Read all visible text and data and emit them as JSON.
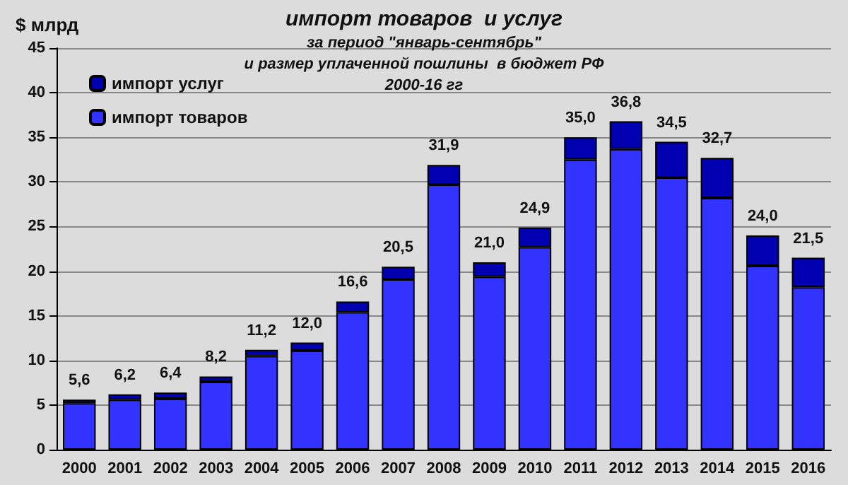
{
  "chart_data": {
    "type": "bar",
    "title": "импорт товаров  и услуг",
    "subtitle": "за период \"январь-сентябрь\"\nи размер уплаченной пошлины  в бюджет РФ\n2000-16 гг",
    "ylabel": "$ млрд",
    "categories": [
      "2000",
      "2001",
      "2002",
      "2003",
      "2004",
      "2005",
      "2006",
      "2007",
      "2008",
      "2009",
      "2010",
      "2011",
      "2012",
      "2013",
      "2014",
      "2015",
      "2016"
    ],
    "stacked": true,
    "series": [
      {
        "name": "импорт товаров",
        "color": "#3333ff",
        "values": [
          5.2,
          5.6,
          5.7,
          7.6,
          10.5,
          11.1,
          15.4,
          19.1,
          29.7,
          19.4,
          22.7,
          32.5,
          33.7,
          30.5,
          28.2,
          20.6,
          18.2
        ]
      },
      {
        "name": "импорт услуг",
        "color": "#0000b0",
        "values": [
          0.4,
          0.6,
          0.7,
          0.6,
          0.7,
          0.9,
          1.2,
          1.4,
          2.2,
          1.6,
          2.2,
          2.5,
          3.1,
          4.0,
          4.5,
          3.4,
          3.3
        ]
      }
    ],
    "totals": [
      "5,6",
      "6,2",
      "6,4",
      "8,2",
      "11,2",
      "12,0",
      "16,6",
      "20,5",
      "31,9",
      "21,0",
      "24,9",
      "35,0",
      "36,8",
      "34,5",
      "32,7",
      "24,0",
      "21,5"
    ],
    "ylim": [
      0,
      45
    ],
    "yticks": [
      0,
      5,
      10,
      15,
      20,
      25,
      30,
      35,
      40,
      45
    ],
    "grid": "y",
    "legend": "top left"
  }
}
